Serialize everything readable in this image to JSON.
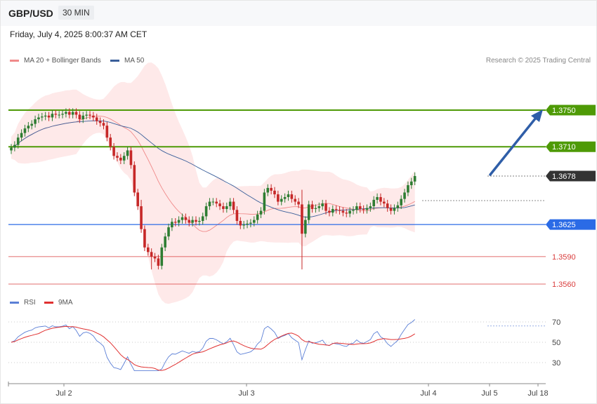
{
  "header": {
    "pair": "GBP/USD",
    "timeframe": "30 MIN",
    "datetime": "Friday, July 4, 2025 8:00:37 AM CET",
    "credit": "Research © 2025 Trading Central"
  },
  "legend_main": [
    {
      "label": "MA 20 + Bollinger Bands",
      "color": "#f08a8a"
    },
    {
      "label": "MA 50",
      "color": "#3a5f9a"
    }
  ],
  "legend_rsi": [
    {
      "label": "RSI",
      "color": "#5b7fd6"
    },
    {
      "label": "9MA",
      "color": "#e03030"
    }
  ],
  "colors": {
    "resistance": "#4e9a06",
    "support": "#2b6be6",
    "target": "#d93c3c",
    "price_tag": "#333333",
    "arrow": "#2f5ea8",
    "bull_candle": "#2e7d32",
    "bear_candle": "#c62828",
    "band_fill": "#fde2e2"
  },
  "chart_data": [
    {
      "type": "candlestick",
      "title": "GBP/USD 30 MIN",
      "ylim": [
        1.3553,
        1.377
      ],
      "x_labels": [
        "Jul 2",
        "Jul 3",
        "Jul 4",
        "Jul 5",
        "Jul 18"
      ],
      "levels": [
        {
          "value": "1.3750",
          "kind": "resistance"
        },
        {
          "value": "1.3710",
          "kind": "resistance"
        },
        {
          "value": "1.3678",
          "kind": "current"
        },
        {
          "value": "1.3625",
          "kind": "support"
        },
        {
          "value": "1.3590",
          "kind": "target"
        },
        {
          "value": "1.3560",
          "kind": "target"
        }
      ],
      "close": [
        1.3709,
        1.3712,
        1.372,
        1.3725,
        1.373,
        1.3733,
        1.3735,
        1.374,
        1.3742,
        1.3743,
        1.3744,
        1.3742,
        1.3746,
        1.3745,
        1.3745,
        1.3746,
        1.3748,
        1.3745,
        1.3748,
        1.3745,
        1.374,
        1.3744,
        1.3745,
        1.3744,
        1.3742,
        1.3738,
        1.3736,
        1.3733,
        1.372,
        1.371,
        1.37,
        1.3698,
        1.3695,
        1.37,
        1.3706,
        1.369,
        1.366,
        1.3645,
        1.362,
        1.36,
        1.3595,
        1.359,
        1.3588,
        1.358,
        1.36,
        1.3612,
        1.3622,
        1.3628,
        1.3627,
        1.363,
        1.3633,
        1.363,
        1.3627,
        1.363,
        1.3628,
        1.3629,
        1.3634,
        1.3645,
        1.365,
        1.365,
        1.3648,
        1.3645,
        1.3642,
        1.3645,
        1.365,
        1.3641,
        1.3629,
        1.3624,
        1.3625,
        1.3626,
        1.3627,
        1.363,
        1.3636,
        1.364,
        1.366,
        1.3665,
        1.3662,
        1.3658,
        1.365,
        1.3653,
        1.3655,
        1.3658,
        1.3653,
        1.365,
        1.3647,
        1.3615,
        1.363,
        1.3647,
        1.3642,
        1.3643,
        1.3645,
        1.3648,
        1.364,
        1.3638,
        1.3642,
        1.3641,
        1.364,
        1.3638,
        1.3637,
        1.364,
        1.3641,
        1.3645,
        1.3642,
        1.3641,
        1.3643,
        1.3645,
        1.3652,
        1.3655,
        1.365,
        1.3648,
        1.3643,
        1.364,
        1.3643,
        1.3646,
        1.3653,
        1.366,
        1.3668,
        1.3672,
        1.3678
      ],
      "rsi": {
        "ylim": [
          20,
          80
        ],
        "ticks": [
          "70",
          "50",
          "30"
        ]
      }
    }
  ]
}
